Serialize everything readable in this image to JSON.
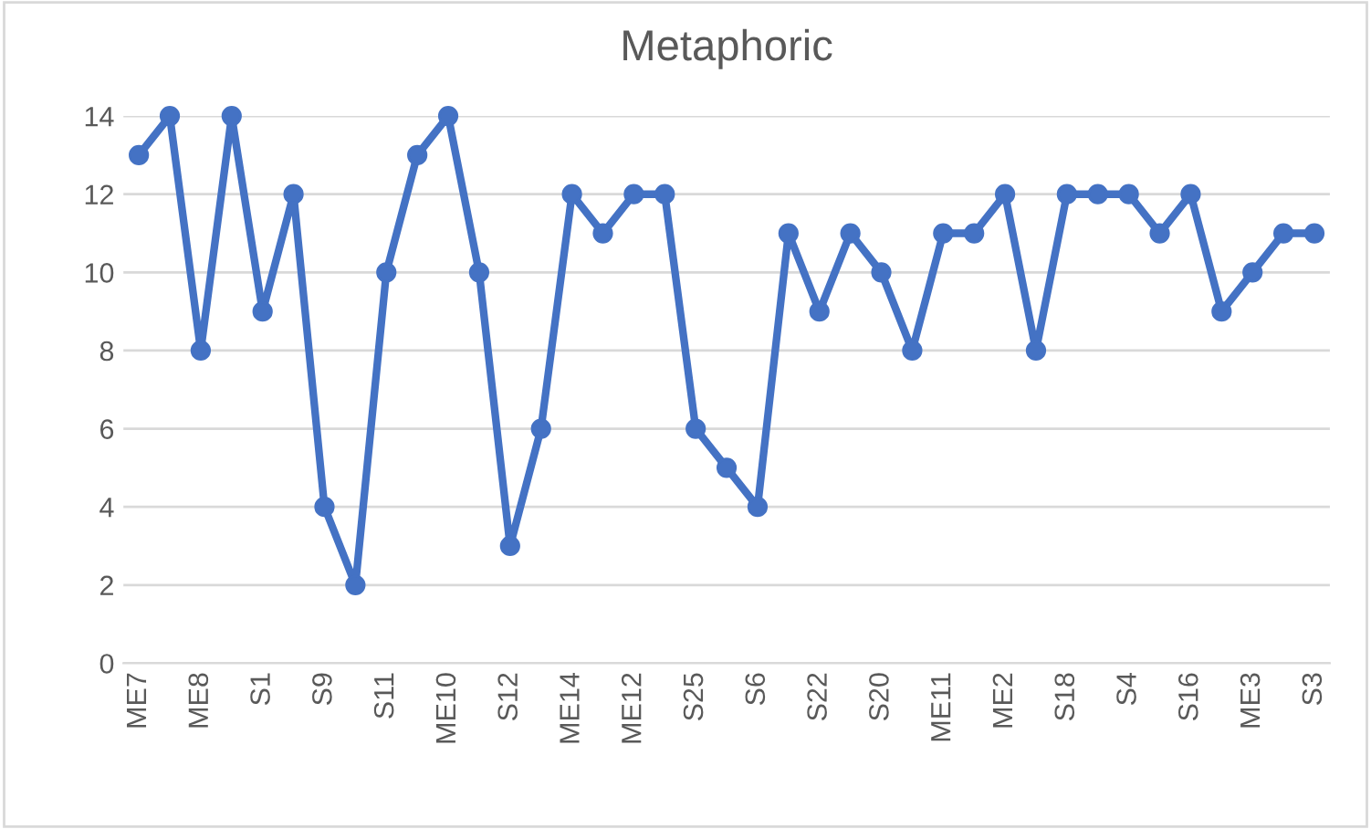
{
  "chart_data": {
    "type": "line",
    "title": "Metaphoric",
    "categories": [
      "ME7",
      null,
      "ME8",
      null,
      "S1",
      null,
      "S9",
      null,
      "S11",
      null,
      "ME10",
      null,
      "S12",
      null,
      "ME14",
      null,
      "ME12",
      null,
      "S25",
      null,
      "S6",
      null,
      "S22",
      null,
      "S20",
      null,
      "ME11",
      null,
      "ME2",
      null,
      "S18",
      null,
      "S4",
      null,
      "S16",
      null,
      "ME3",
      null,
      "S3"
    ],
    "series": [
      {
        "color": "#4472c4",
        "values": [
          13,
          14,
          8,
          14,
          9,
          12,
          4,
          2,
          10,
          13,
          14,
          10,
          3,
          6,
          12,
          11,
          12,
          12,
          6,
          5,
          4,
          11,
          9,
          11,
          10,
          8,
          11,
          11,
          12,
          8,
          12,
          12,
          12,
          11,
          12,
          9,
          10,
          11,
          11
        ]
      }
    ],
    "ylim": [
      0,
      14
    ],
    "yticks": [
      0,
      2,
      4,
      6,
      8,
      10,
      12,
      14
    ],
    "grid": "y",
    "marker": "circle",
    "line_style": "solid",
    "legend": false
  }
}
